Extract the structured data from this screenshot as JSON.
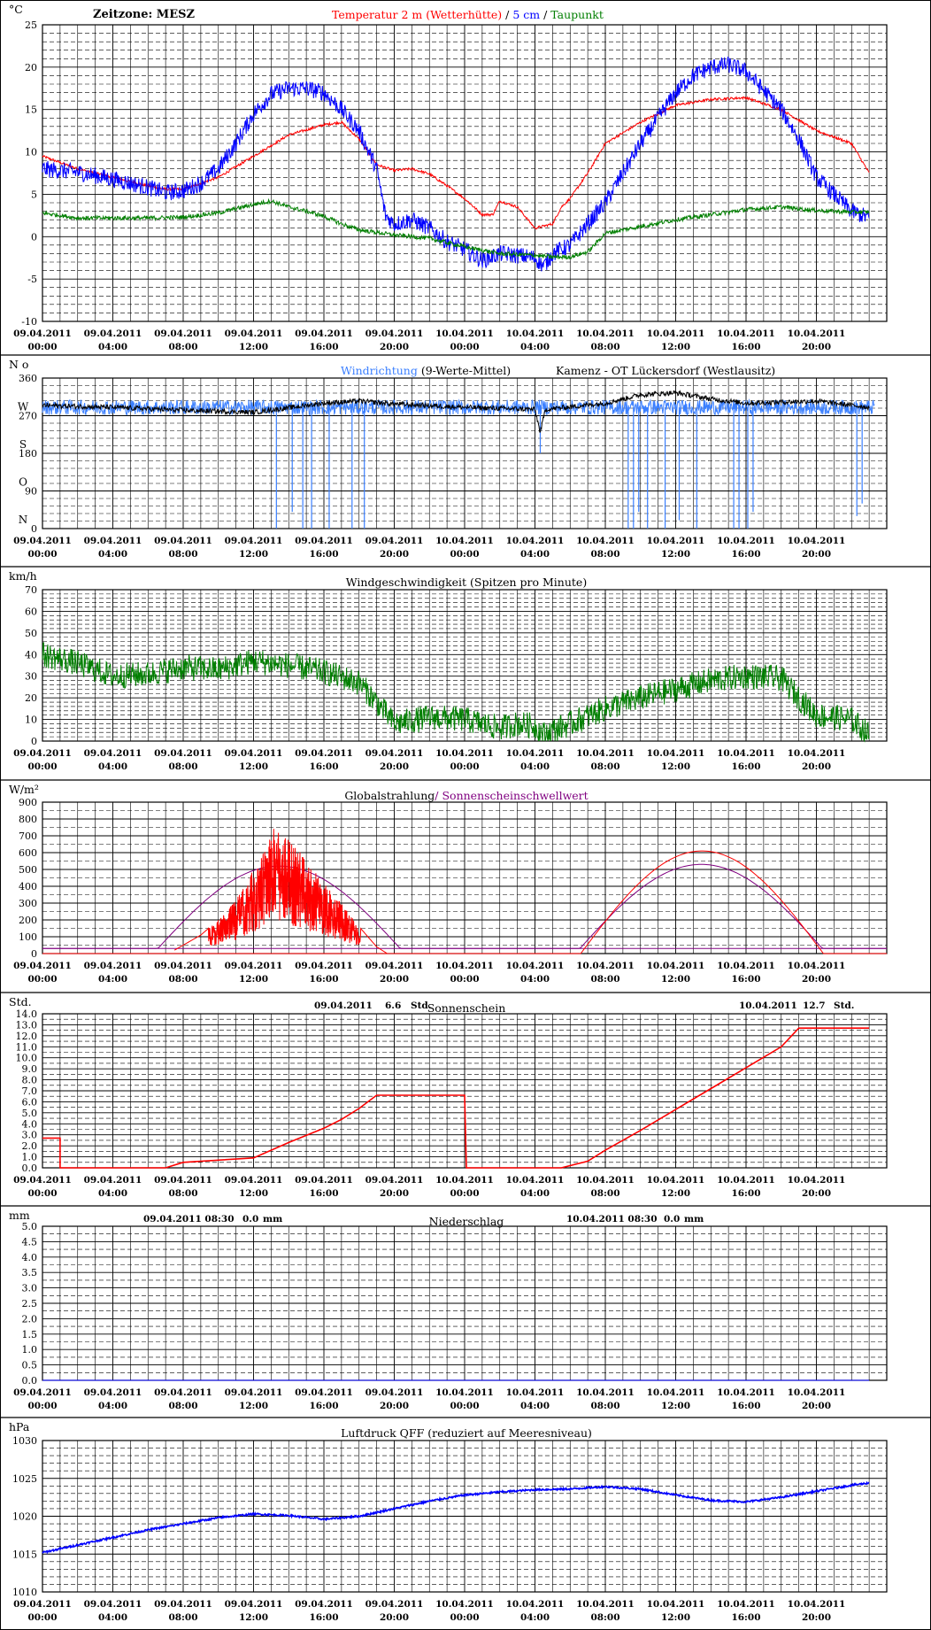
{
  "x_ticks": [
    {
      "date": "09.04.2011",
      "time": "00:00"
    },
    {
      "date": "09.04.2011",
      "time": "04:00"
    },
    {
      "date": "09.04.2011",
      "time": "08:00"
    },
    {
      "date": "09.04.2011",
      "time": "12:00"
    },
    {
      "date": "09.04.2011",
      "time": "16:00"
    },
    {
      "date": "09.04.2011",
      "time": "20:00"
    },
    {
      "date": "10.04.2011",
      "time": "00:00"
    },
    {
      "date": "10.04.2011",
      "time": "04:00"
    },
    {
      "date": "10.04.2011",
      "time": "08:00"
    },
    {
      "date": "10.04.2011",
      "time": "12:00"
    },
    {
      "date": "10.04.2011",
      "time": "16:00"
    },
    {
      "date": "10.04.2011",
      "time": "20:00"
    }
  ],
  "colors": {
    "red": "#ff0000",
    "blue": "#0000ff",
    "green": "#007f00",
    "purple": "#800080",
    "lightblue": "#3a7fff",
    "black": "#000000"
  },
  "chart_data": [
    {
      "id": "temperature",
      "type": "line",
      "unit_label": "°C",
      "zone_label": "Zeitzone: MESZ",
      "title_parts": [
        {
          "text": "Temperatur 2 m (Wetterhütte)",
          "color": "#ff0000"
        },
        {
          "text": "  /  ",
          "color": "#000000"
        },
        {
          "text": "5 cm",
          "color": "#0000ff"
        },
        {
          "text": " / ",
          "color": "#000000"
        },
        {
          "text": "Taupunkt",
          "color": "#007f00"
        }
      ],
      "ylim": [
        -10,
        25
      ],
      "ytick_labels": [
        "25",
        "20",
        "15",
        "10",
        "5",
        "0",
        "-5",
        "-10"
      ],
      "series": [
        {
          "color": "#ff0000",
          "noise": 0.15,
          "x": [
            0,
            2,
            4,
            6,
            7,
            8,
            10,
            12,
            14,
            16,
            17,
            18,
            19,
            20,
            21,
            22,
            23,
            24,
            25,
            25.6,
            26,
            27,
            28,
            29,
            29.5,
            30,
            31,
            32,
            34,
            36,
            38,
            40,
            42,
            44,
            46,
            47
          ],
          "y": [
            9.5,
            8,
            7,
            6,
            5.6,
            5.6,
            7,
            9.5,
            12,
            13.2,
            13.5,
            11.5,
            8.5,
            7.8,
            8,
            7.4,
            6,
            4.5,
            2.6,
            2.6,
            4.2,
            3.5,
            1,
            1.5,
            3.5,
            4.5,
            7.5,
            11,
            13.5,
            15.5,
            16.2,
            16.4,
            15,
            12.5,
            11,
            7.5
          ]
        },
        {
          "color": "#0000ff",
          "noise": 1.0,
          "x": [
            0,
            2,
            4,
            6,
            7,
            8,
            9,
            10,
            11,
            12,
            13,
            14,
            15,
            16,
            17,
            18,
            19,
            19.5,
            20,
            21,
            22,
            23,
            24,
            25,
            26,
            27,
            28,
            28.5,
            29,
            30,
            31,
            32,
            34,
            36,
            37,
            38,
            39,
            40,
            42,
            43,
            44,
            45,
            46,
            47
          ],
          "y": [
            8,
            7.6,
            6.8,
            5.8,
            5.2,
            5.4,
            6.3,
            8,
            11,
            14.5,
            16.8,
            17.5,
            17.5,
            17,
            15,
            12.5,
            8,
            2.5,
            1.5,
            2,
            1,
            -0.6,
            -1.5,
            -2.8,
            -2,
            -2.2,
            -2.5,
            -3.5,
            -2,
            -1,
            1.5,
            4,
            11,
            17,
            19,
            20,
            20.3,
            19.5,
            15,
            11.5,
            7,
            5,
            3,
            2.2
          ]
        },
        {
          "color": "#007f00",
          "noise": 0.25,
          "x": [
            0,
            2,
            4,
            6,
            8,
            10,
            12,
            13,
            14,
            15,
            16,
            17,
            18,
            20,
            22,
            24,
            26,
            28,
            29,
            30,
            31,
            32,
            34,
            36,
            38,
            40,
            42,
            44,
            46,
            47
          ],
          "y": [
            2.8,
            2.2,
            2.2,
            2.2,
            2.3,
            2.8,
            3.8,
            4.2,
            3.5,
            3,
            2.4,
            1.5,
            0.8,
            0.2,
            -0.2,
            -1.2,
            -2,
            -2.2,
            -2.4,
            -2.4,
            -1.8,
            0.4,
            1.2,
            2,
            2.6,
            3.2,
            3.5,
            3.1,
            2.9,
            2.9
          ]
        }
      ]
    },
    {
      "id": "wind_direction",
      "type": "line",
      "unit_label": "N o",
      "title_parts": [
        {
          "text": "Windrichtung",
          "color": "#3a7fff"
        },
        {
          "text": " (9-Werte-Mittel)",
          "color": "#000000"
        }
      ],
      "title_right": "Kamenz - OT Lückersdorf (Westlausitz)",
      "ylim": [
        0,
        360
      ],
      "ytick_labels": [
        "360",
        "270",
        "180",
        "90",
        "0"
      ],
      "compass_labels": [
        "W",
        "S",
        "O",
        "N"
      ],
      "series": [
        {
          "color": "#3a7fff",
          "noise": 18,
          "base": 290,
          "spikes": [
            [
              13.3,
              0
            ],
            [
              14.2,
              40
            ],
            [
              14.8,
              0
            ],
            [
              15.3,
              0
            ],
            [
              16.3,
              0
            ],
            [
              17.6,
              0
            ],
            [
              18.3,
              0
            ],
            [
              28.3,
              180
            ],
            [
              33.3,
              0
            ],
            [
              33.6,
              0
            ],
            [
              33.9,
              40
            ],
            [
              34.4,
              0
            ],
            [
              35.4,
              0
            ],
            [
              36.2,
              20
            ],
            [
              37.2,
              0
            ],
            [
              39.3,
              0
            ],
            [
              39.6,
              0
            ],
            [
              40.1,
              0
            ],
            [
              40.4,
              40
            ],
            [
              46.3,
              30
            ],
            [
              46.6,
              60
            ]
          ]
        },
        {
          "color": "#000000",
          "noise": 6,
          "base": 295,
          "x": [
            0,
            4,
            8,
            12,
            16,
            18,
            20,
            24,
            28,
            28.3,
            28.6,
            32,
            34,
            36,
            38,
            40,
            44,
            47
          ],
          "y": [
            295,
            290,
            283,
            278,
            300,
            305,
            298,
            290,
            285,
            230,
            285,
            300,
            320,
            325,
            310,
            300,
            305,
            290
          ]
        }
      ]
    },
    {
      "id": "wind_speed",
      "type": "line",
      "unit_label": "km/h",
      "title_parts": [
        {
          "text": "Windgeschwindigkeit (Spitzen pro Minute)",
          "color": "#000000"
        }
      ],
      "ylim": [
        0,
        70
      ],
      "ytick_labels": [
        "70",
        "60",
        "50",
        "40",
        "30",
        "20",
        "10",
        "0"
      ],
      "series": [
        {
          "color": "#007f00",
          "noise": 6,
          "x": [
            0,
            2,
            4,
            6,
            8,
            10,
            12,
            14,
            16,
            18,
            19,
            20,
            22,
            24,
            26,
            27,
            28,
            28.5,
            29,
            30,
            32,
            34,
            36,
            38,
            40,
            42,
            43,
            44,
            46,
            47
          ],
          "y": [
            40,
            36,
            30,
            31,
            34,
            33,
            37,
            35,
            32,
            27,
            18,
            8,
            11,
            10,
            6,
            8,
            7,
            3,
            5,
            8,
            15,
            20,
            24,
            28,
            30,
            29,
            20,
            12,
            10,
            3
          ]
        }
      ]
    },
    {
      "id": "global_radiation",
      "type": "line",
      "unit_label": "W/m²",
      "title_parts": [
        {
          "text": "Globalstrahlung",
          "color": "#000000"
        },
        {
          "text": "/ Sonnenscheinschwellwert",
          "color": "#800080"
        }
      ],
      "ylim": [
        0,
        900
      ],
      "ytick_labels": [
        "900",
        "800",
        "700",
        "600",
        "500",
        "400",
        "300",
        "200",
        "100",
        "0"
      ],
      "series": [
        {
          "color": "#800080",
          "kind": "day_curve",
          "rise": 6.3,
          "set": 20.6,
          "peak": 520,
          "floor": 30
        },
        {
          "color": "#800080",
          "kind": "day_curve",
          "rise": 30.3,
          "set": 44.6,
          "peak": 530,
          "floor": 30
        },
        {
          "color": "#ff0000",
          "kind": "day_curve",
          "rise": 30.6,
          "set": 44.4,
          "peak": 610,
          "floor": 0
        },
        {
          "color": "#ff0000",
          "kind": "noisy_day",
          "x": [
            7.5,
            8,
            9,
            10,
            11,
            12,
            12.5,
            13,
            14,
            15,
            16,
            17,
            18,
            19,
            19.6
          ],
          "y": [
            20,
            50,
            110,
            200,
            320,
            500,
            620,
            760,
            680,
            560,
            420,
            300,
            160,
            40,
            0
          ]
        }
      ]
    },
    {
      "id": "sunshine",
      "type": "line",
      "unit_label": "Std.",
      "title_parts": [
        {
          "text": "Sonnenschein",
          "color": "#000000"
        }
      ],
      "summary_left": {
        "date": "09.04.2011",
        "value": "6.6",
        "unit": "Std."
      },
      "summary_right": {
        "date": "10.04.2011",
        "value": "12.7",
        "unit": "Std."
      },
      "ylim": [
        0,
        14
      ],
      "ytick_labels": [
        "14.0",
        "13.0",
        "12.0",
        "11.0",
        "10.0",
        "9.0",
        "8.0",
        "7.0",
        "6.0",
        "5.0",
        "4.0",
        "3.0",
        "2.0",
        "1.0",
        "0.0"
      ],
      "series": [
        {
          "color": "#ff0000",
          "x": [
            0,
            1,
            1,
            7,
            8,
            12,
            14,
            16,
            17,
            18,
            19,
            20,
            24,
            24.1,
            26,
            28,
            29.5,
            31,
            32,
            34,
            36,
            38,
            40,
            42,
            43,
            44,
            46,
            47
          ],
          "y": [
            2.7,
            2.7,
            0,
            0,
            0.5,
            0.9,
            2.3,
            3.6,
            4.4,
            5.4,
            6.6,
            6.6,
            6.6,
            0,
            0,
            0,
            0,
            0.6,
            1.6,
            3.4,
            5.3,
            7.2,
            9.1,
            11,
            12.7,
            12.7,
            12.7,
            12.7
          ]
        }
      ]
    },
    {
      "id": "precipitation",
      "type": "line",
      "unit_label": "mm",
      "title_parts": [
        {
          "text": "Niederschlag",
          "color": "#000000"
        }
      ],
      "summary_left": {
        "date": "09.04.2011 08:30",
        "value": "0.0",
        "unit": "mm"
      },
      "summary_right": {
        "date": "10.04.2011 08:30",
        "value": "0.0",
        "unit": "mm"
      },
      "ylim": [
        0,
        5
      ],
      "ytick_labels": [
        "5.0",
        "4.5",
        "4.0",
        "3.5",
        "3.0",
        "2.5",
        "2.0",
        "1.5",
        "1.0",
        "0.5",
        "0.0"
      ],
      "series": [
        {
          "color": "#0000ff",
          "x": [
            0,
            47
          ],
          "y": [
            0,
            0
          ]
        }
      ]
    },
    {
      "id": "pressure",
      "type": "line",
      "unit_label": "hPa",
      "title_parts": [
        {
          "text": "Luftdruck QFF (reduziert auf Meeresniveau)",
          "color": "#000000"
        }
      ],
      "ylim": [
        1010,
        1030
      ],
      "ytick_labels": [
        "1030",
        "1025",
        "1020",
        "1015",
        "1010"
      ],
      "series": [
        {
          "color": "#0000ff",
          "noise": 0.12,
          "x": [
            0,
            2,
            4,
            6,
            8,
            10,
            12,
            14,
            16,
            18,
            20,
            22,
            24,
            26,
            28,
            30,
            32,
            34,
            36,
            38,
            40,
            42,
            44,
            46,
            47
          ],
          "y": [
            1015.2,
            1016.2,
            1017.2,
            1018.2,
            1019,
            1019.8,
            1020.3,
            1020.1,
            1019.6,
            1020,
            1021,
            1022,
            1022.8,
            1023.2,
            1023.5,
            1023.6,
            1023.9,
            1023.6,
            1022.8,
            1022.1,
            1021.9,
            1022.5,
            1023.3,
            1024.1,
            1024.4
          ]
        }
      ]
    }
  ]
}
